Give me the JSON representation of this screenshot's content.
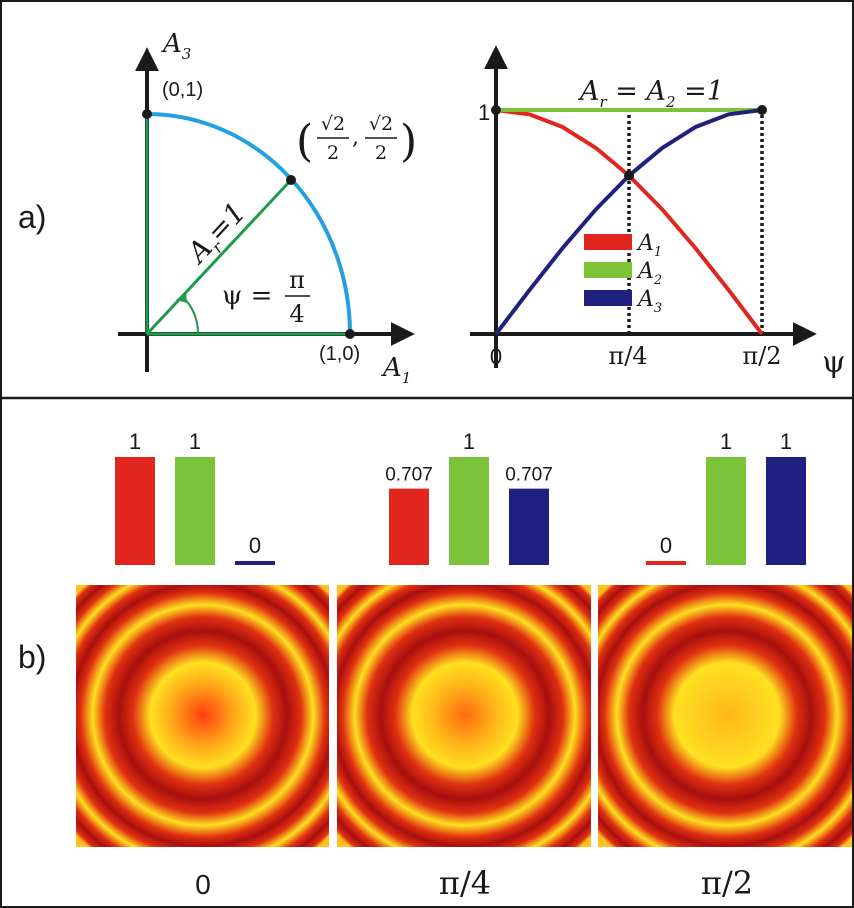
{
  "panel_labels": {
    "a": "a)",
    "b": "b)"
  },
  "colors": {
    "red": "#e0261f",
    "green": "#7dc33a",
    "navy": "#202080",
    "arc": "#22a0e0",
    "radius": "#1f9a4a",
    "axis": "#1a1a1a"
  },
  "quarter_circle": {
    "x_axis_var": "A",
    "x_axis_sub": "1",
    "y_axis_var": "A",
    "y_axis_sub": "3",
    "point_top": "(0,1)",
    "point_right": "(1,0)",
    "point_mid_num": "√2",
    "point_mid_den": "2",
    "point_mid_comma": ",",
    "radius_label": "A",
    "radius_sub": "r",
    "radius_eq": "=1",
    "angle_label": "ψ =",
    "angle_num": "π",
    "angle_den": "4"
  },
  "amplitude_plot": {
    "title_a": "A",
    "title_sub_1": "r",
    "title_eq_mid": " = ",
    "title_b": "A",
    "title_sub_2": "2",
    "title_eq_end": " =1",
    "y_tick": "1",
    "x_axis_symbol": "ψ",
    "x_ticks": [
      "0",
      "π/4",
      "π/2"
    ],
    "legend": [
      {
        "var": "A",
        "sub": "1",
        "color": "#e0261f"
      },
      {
        "var": "A",
        "sub": "2",
        "color": "#7dc33a"
      },
      {
        "var": "A",
        "sub": "3",
        "color": "#202080"
      }
    ]
  },
  "chart_data": [
    {
      "type": "line",
      "x": [
        0,
        0.19635,
        0.3927,
        0.58905,
        0.7854,
        0.98175,
        1.1781,
        1.37445,
        1.5708
      ],
      "x_ticks": [
        "0",
        "π/4",
        "π/2"
      ],
      "series": [
        {
          "name": "A1",
          "color": "#e0261f",
          "values": [
            1,
            0.981,
            0.924,
            0.831,
            0.707,
            0.556,
            0.383,
            0.195,
            0
          ]
        },
        {
          "name": "A2",
          "color": "#7dc33a",
          "values": [
            1,
            1,
            1,
            1,
            1,
            1,
            1,
            1,
            1
          ]
        },
        {
          "name": "A3",
          "color": "#202080",
          "values": [
            0,
            0.195,
            0.383,
            0.556,
            0.707,
            0.831,
            0.924,
            0.981,
            1
          ]
        }
      ],
      "ylim": [
        0,
        1
      ],
      "xlim": [
        0,
        1.5708
      ]
    },
    {
      "type": "bar",
      "groups": [
        {
          "label": "0",
          "values": [
            1,
            1,
            0
          ],
          "labels": [
            "1",
            "1",
            "0"
          ]
        },
        {
          "label": "π/4",
          "values": [
            0.707,
            1,
            0.707
          ],
          "labels": [
            "0.707",
            "1",
            "0.707"
          ]
        },
        {
          "label": "π/2",
          "values": [
            0,
            1,
            1
          ],
          "labels": [
            "0",
            "1",
            "1"
          ]
        }
      ],
      "bar_colors": [
        "#e0261f",
        "#7dc33a",
        "#202080"
      ]
    }
  ],
  "ring_images": [
    {
      "caption": "0",
      "center_color": "#ff3d10",
      "ring_color": "#a80f0f",
      "peak_color": "#ffe020"
    },
    {
      "caption": "π/4",
      "center_color": "#ff6a10",
      "ring_color": "#a80f0f",
      "peak_color": "#ffe020"
    },
    {
      "caption": "π/2",
      "center_color": "#ffb818",
      "ring_color": "#a80f0f",
      "peak_color": "#ffe020"
    }
  ]
}
